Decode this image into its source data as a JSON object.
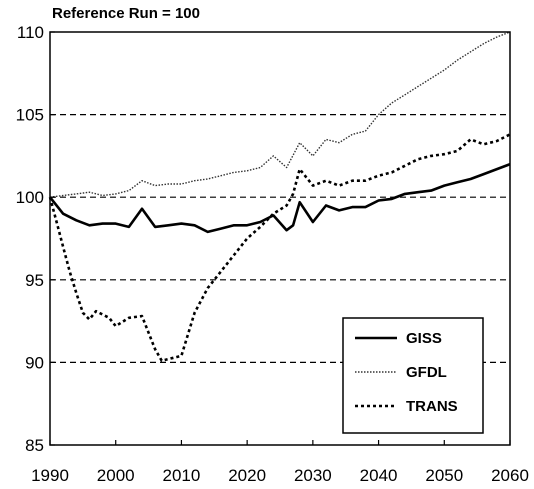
{
  "chart_data": {
    "type": "line",
    "title": "Reference Run = 100",
    "xlabel": "",
    "ylabel": "",
    "xlim": [
      1990,
      2060
    ],
    "ylim": [
      85,
      110
    ],
    "xticks": [
      1990,
      2000,
      2010,
      2020,
      2030,
      2040,
      2050,
      2060
    ],
    "xtick_labels": [
      "1990",
      "2000",
      "2010",
      "2020",
      "2030",
      "2040",
      "2050",
      "2060"
    ],
    "yticks": [
      85,
      90,
      95,
      100,
      105,
      110
    ],
    "ytick_labels": [
      "85",
      "90",
      "95",
      "100",
      "105",
      "110"
    ],
    "gridlines_y": [
      90,
      95,
      100,
      105
    ],
    "grid_style": "dashed horizontal",
    "legend_position": "bottom-right",
    "series": [
      {
        "name": "GISS",
        "style": "solid",
        "x": [
          1990,
          1992,
          1994,
          1996,
          1998,
          2000,
          2002,
          2004,
          2006,
          2008,
          2010,
          2012,
          2014,
          2016,
          2018,
          2020,
          2022,
          2024,
          2026,
          2027,
          2028,
          2030,
          2032,
          2034,
          2036,
          2038,
          2040,
          2042,
          2044,
          2046,
          2048,
          2050,
          2052,
          2054,
          2056,
          2058,
          2060
        ],
        "y": [
          100,
          99.0,
          98.6,
          98.3,
          98.4,
          98.4,
          98.2,
          99.3,
          98.2,
          98.3,
          98.4,
          98.3,
          97.9,
          98.1,
          98.3,
          98.3,
          98.5,
          98.9,
          98.0,
          98.3,
          99.7,
          98.5,
          99.5,
          99.2,
          99.4,
          99.4,
          99.8,
          99.9,
          100.2,
          100.3,
          100.4,
          100.7,
          100.9,
          101.1,
          101.4,
          101.7,
          102.0
        ]
      },
      {
        "name": "GFDL",
        "style": "dotted-fine",
        "x": [
          1990,
          1992,
          1994,
          1996,
          1998,
          2000,
          2002,
          2004,
          2006,
          2008,
          2010,
          2012,
          2014,
          2016,
          2018,
          2020,
          2022,
          2024,
          2026,
          2028,
          2030,
          2032,
          2034,
          2036,
          2038,
          2040,
          2042,
          2044,
          2046,
          2048,
          2050,
          2052,
          2054,
          2056,
          2058,
          2060
        ],
        "y": [
          100,
          100.1,
          100.2,
          100.3,
          100.1,
          100.2,
          100.4,
          101.0,
          100.7,
          100.8,
          100.8,
          101.0,
          101.1,
          101.3,
          101.5,
          101.6,
          101.8,
          102.5,
          101.8,
          103.3,
          102.5,
          103.5,
          103.3,
          103.8,
          104.0,
          105.0,
          105.7,
          106.2,
          106.7,
          107.2,
          107.7,
          108.3,
          108.8,
          109.3,
          109.7,
          110.0
        ]
      },
      {
        "name": "TRANS",
        "style": "dashed-coarse",
        "x": [
          1990,
          1991,
          1992,
          1993,
          1994,
          1995,
          1996,
          1997,
          1998,
          1999,
          2000,
          2002,
          2004,
          2006,
          2007,
          2008,
          2010,
          2012,
          2014,
          2016,
          2018,
          2020,
          2022,
          2024,
          2026,
          2027,
          2028,
          2030,
          2032,
          2034,
          2036,
          2038,
          2040,
          2042,
          2044,
          2046,
          2048,
          2050,
          2052,
          2054,
          2056,
          2058,
          2060
        ],
        "y": [
          100,
          98.5,
          97.0,
          95.5,
          94.2,
          93.0,
          92.6,
          93.1,
          92.9,
          92.7,
          92.2,
          92.7,
          92.8,
          90.8,
          90.1,
          90.2,
          90.4,
          93.0,
          94.5,
          95.5,
          96.5,
          97.5,
          98.2,
          99.0,
          99.5,
          100.2,
          101.7,
          100.7,
          101.0,
          100.7,
          101.0,
          101.0,
          101.3,
          101.5,
          101.9,
          102.3,
          102.5,
          102.6,
          102.8,
          103.5,
          103.2,
          103.4,
          103.8
        ]
      }
    ]
  }
}
